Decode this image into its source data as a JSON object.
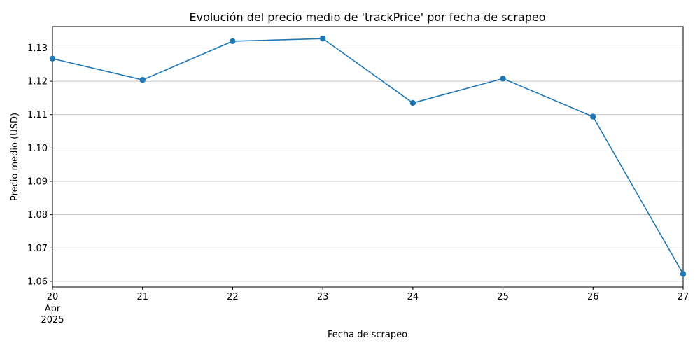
{
  "chart_data": {
    "type": "line",
    "title": "Evolución del precio medio de 'trackPrice' por fecha de scrapeo",
    "xlabel": "Fecha de scrapeo",
    "ylabel": "Precio medio (USD)",
    "x": [
      "2025-04-20",
      "2025-04-21",
      "2025-04-22",
      "2025-04-23",
      "2025-04-24",
      "2025-04-25",
      "2025-04-26",
      "2025-04-27"
    ],
    "x_tick_labels": [
      "20",
      "21",
      "22",
      "23",
      "24",
      "25",
      "26",
      "27"
    ],
    "x_tick_sublabels": [
      "Apr",
      "2025"
    ],
    "y_ticks": [
      "1.06",
      "1.07",
      "1.08",
      "1.09",
      "1.10",
      "1.11",
      "1.12",
      "1.13"
    ],
    "ylim": [
      1.0583,
      1.1364
    ],
    "series": [
      {
        "values": [
          1.1268,
          1.1204,
          1.132,
          1.1328,
          1.1135,
          1.1208,
          1.1094,
          1.0622
        ],
        "color": "#1f77b4"
      }
    ],
    "grid": "y-axis only",
    "legend": "none"
  }
}
